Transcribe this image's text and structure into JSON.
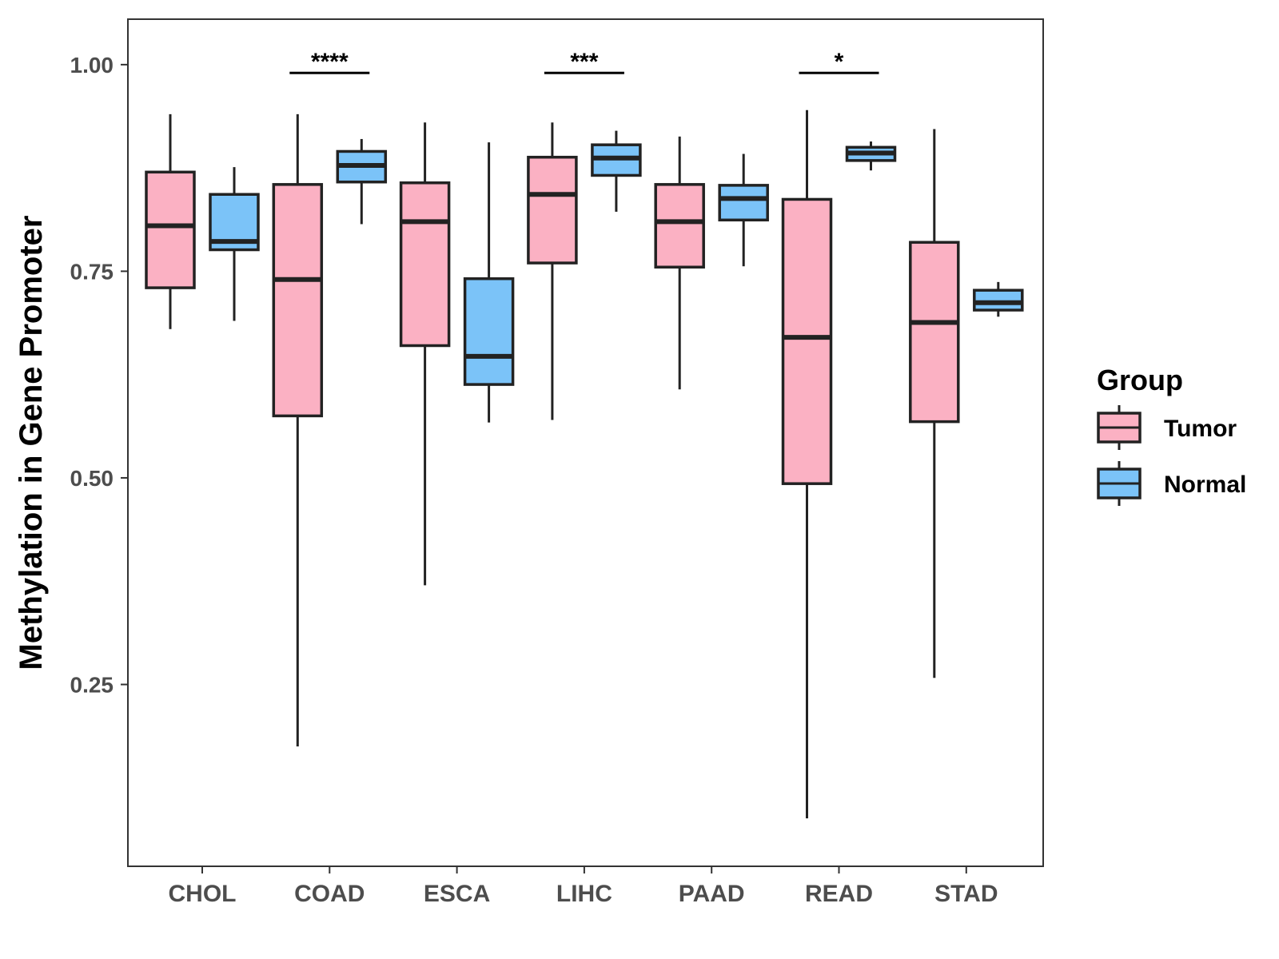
{
  "chart_data": {
    "type": "boxplot",
    "title": "",
    "xlabel": "",
    "ylabel": "Methylation in Gene Promoter",
    "ylim": [
      0.03,
      1.055
    ],
    "yticks": [
      0.25,
      0.5,
      0.75,
      1.0
    ],
    "ytick_labels": [
      "0.25",
      "0.50",
      "0.75",
      "1.00"
    ],
    "grid": false,
    "categories": [
      "CHOL",
      "COAD",
      "ESCA",
      "LIHC",
      "PAAD",
      "READ",
      "STAD"
    ],
    "series": [
      {
        "name": "Tumor",
        "color": "#FBB1C3",
        "boxes": [
          {
            "min": 0.68,
            "q1": 0.73,
            "median": 0.805,
            "q3": 0.87,
            "max": 0.94
          },
          {
            "min": 0.175,
            "q1": 0.575,
            "median": 0.74,
            "q3": 0.855,
            "max": 0.94
          },
          {
            "min": 0.37,
            "q1": 0.66,
            "median": 0.81,
            "q3": 0.857,
            "max": 0.93
          },
          {
            "min": 0.57,
            "q1": 0.76,
            "median": 0.843,
            "q3": 0.888,
            "max": 0.93
          },
          {
            "min": 0.607,
            "q1": 0.755,
            "median": 0.81,
            "q3": 0.855,
            "max": 0.913
          },
          {
            "min": 0.088,
            "q1": 0.493,
            "median": 0.67,
            "q3": 0.837,
            "max": 0.945
          },
          {
            "min": 0.258,
            "q1": 0.568,
            "median": 0.688,
            "q3": 0.785,
            "max": 0.922
          }
        ]
      },
      {
        "name": "Normal",
        "color": "#7BC3F8",
        "boxes": [
          {
            "min": 0.69,
            "q1": 0.776,
            "median": 0.786,
            "q3": 0.843,
            "max": 0.876
          },
          {
            "min": 0.807,
            "q1": 0.858,
            "median": 0.878,
            "q3": 0.895,
            "max": 0.91
          },
          {
            "min": 0.567,
            "q1": 0.613,
            "median": 0.647,
            "q3": 0.741,
            "max": 0.906
          },
          {
            "min": 0.822,
            "q1": 0.866,
            "median": 0.887,
            "q3": 0.903,
            "max": 0.92
          },
          {
            "min": 0.756,
            "q1": 0.812,
            "median": 0.838,
            "q3": 0.854,
            "max": 0.892
          },
          {
            "min": 0.872,
            "q1": 0.884,
            "median": 0.893,
            "q3": 0.9,
            "max": 0.907
          },
          {
            "min": 0.695,
            "q1": 0.703,
            "median": 0.712,
            "q3": 0.727,
            "max": 0.737
          }
        ]
      }
    ],
    "significance": [
      {
        "category": "COAD",
        "label": "****",
        "y": 0.99
      },
      {
        "category": "LIHC",
        "label": "***",
        "y": 0.99
      },
      {
        "category": "READ",
        "label": "*",
        "y": 0.99
      }
    ],
    "legend": {
      "title": "Group",
      "position": "right",
      "items": [
        "Tumor",
        "Normal"
      ]
    }
  }
}
